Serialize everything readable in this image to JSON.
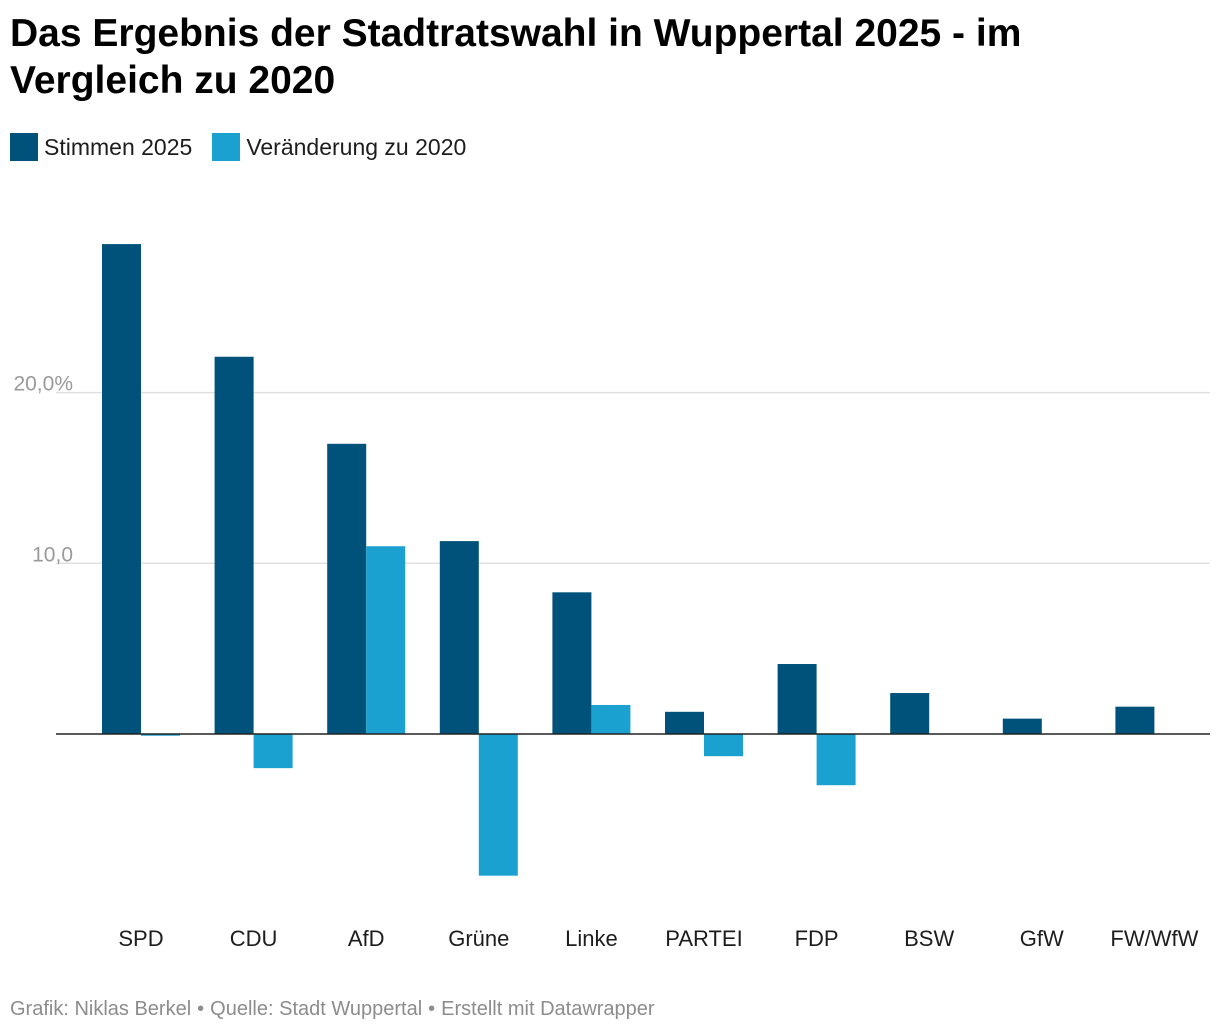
{
  "colors": {
    "series_2025": "#00527a",
    "series_change": "#1aa1cf",
    "gridline": "#e0e0e0",
    "baseline": "#222222"
  },
  "chart_data": {
    "type": "bar",
    "title": "Das Ergebnis der Stadtratswahl in Wuppertal 2025 - im Vergleich zu 2020",
    "categories": [
      "SPD",
      "CDU",
      "AfD",
      "Grüne",
      "Linke",
      "PARTEI",
      "FDP",
      "BSW",
      "GfW",
      "FW/WfW"
    ],
    "series": [
      {
        "name": "Stimmen 2025",
        "values": [
          28.7,
          22.1,
          17.0,
          11.3,
          8.3,
          1.3,
          4.1,
          2.4,
          0.9,
          1.6
        ]
      },
      {
        "name": "Veränderung zu 2020",
        "values": [
          -0.1,
          -2.0,
          11.0,
          -8.3,
          1.7,
          -1.3,
          -3.0,
          null,
          null,
          null
        ]
      }
    ],
    "yticks": [
      {
        "value": 10,
        "label": "10,0"
      },
      {
        "value": 20,
        "label": "20,0%"
      }
    ],
    "ylim": [
      -9.5,
      30
    ],
    "grid": true,
    "legend_position": "top-left"
  },
  "footer": {
    "grafik": "Grafik: Niklas Berkel",
    "quelle": "Quelle: Stadt Wuppertal",
    "erstellt": "Erstellt mit Datawrapper",
    "separator": "•"
  }
}
